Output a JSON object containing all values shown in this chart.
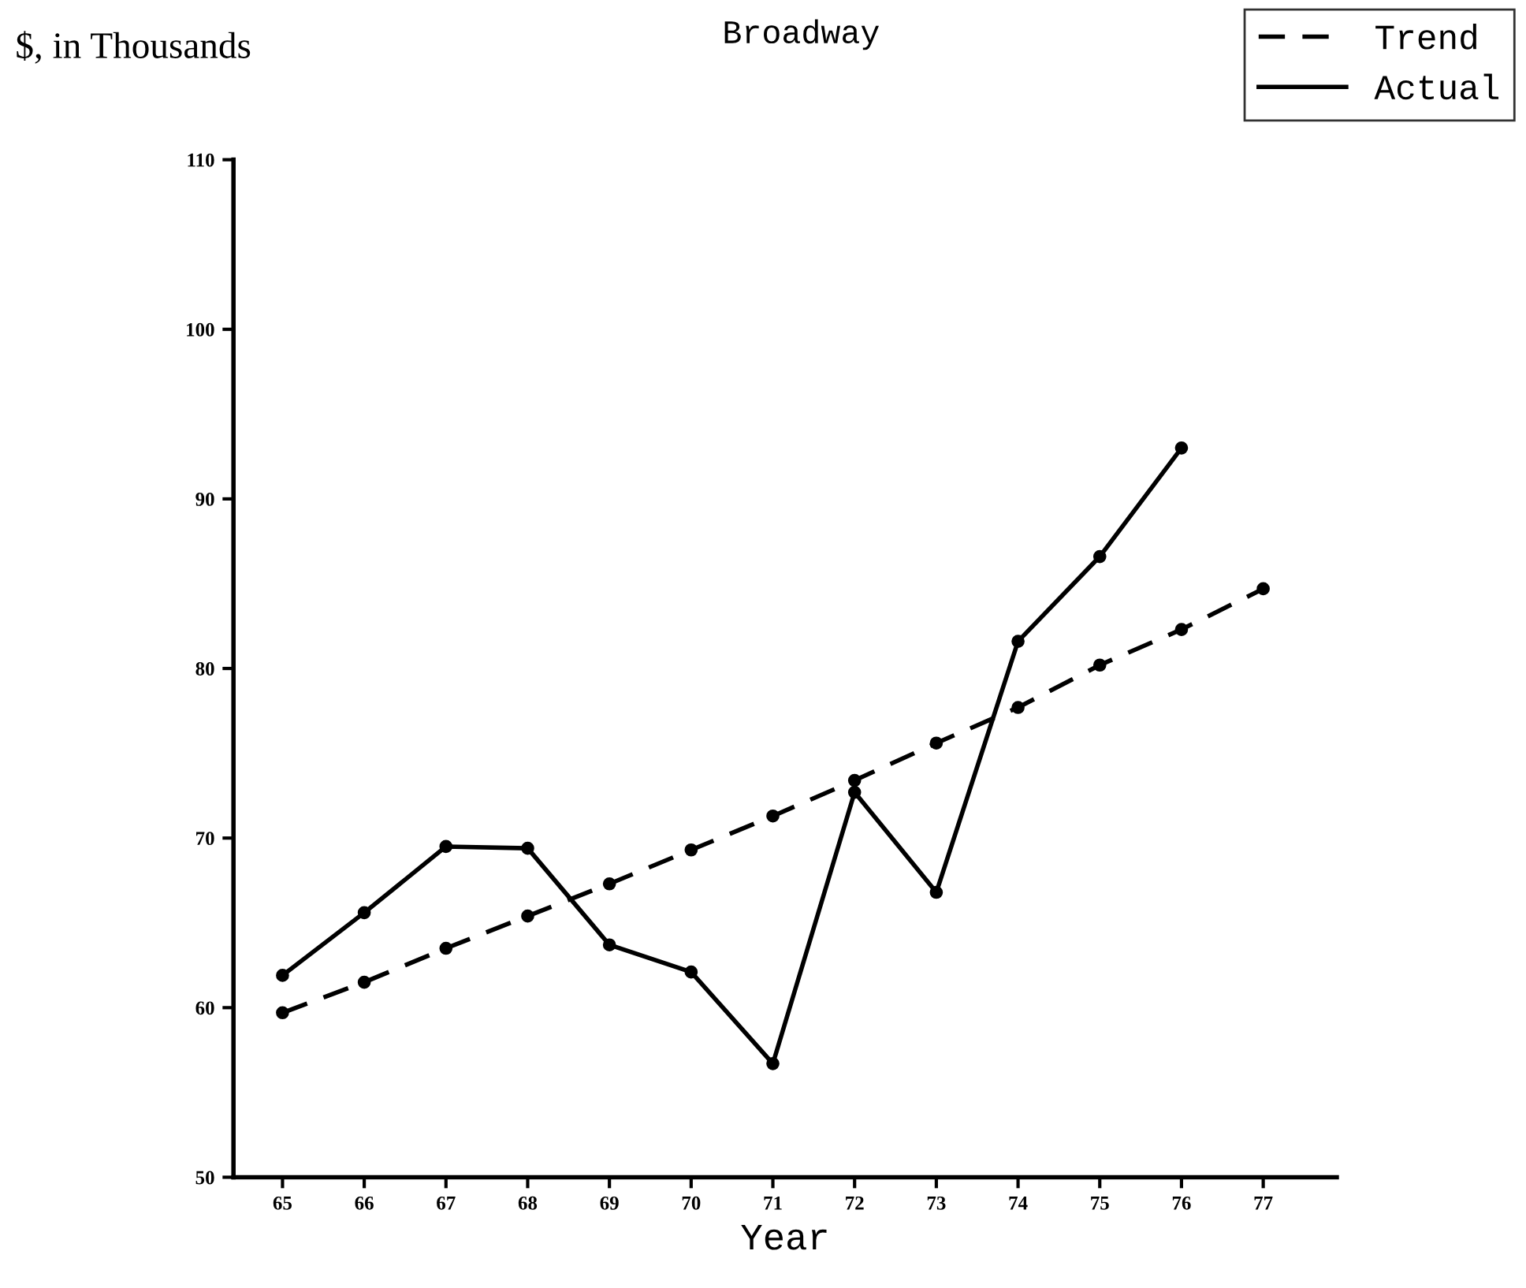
{
  "chart_data": {
    "type": "line",
    "title": "Broadway",
    "ylabel": "$, in Thousands",
    "xlabel": "Year",
    "xlim": [
      64.4,
      77.9
    ],
    "xticks": [
      65,
      66,
      67,
      68,
      69,
      70,
      71,
      72,
      73,
      74,
      75,
      76,
      77
    ],
    "ylim": [
      50,
      110
    ],
    "yticks": [
      50,
      60,
      70,
      80,
      90,
      100,
      110
    ],
    "grid": false,
    "legend": "top right",
    "marker": "circle",
    "series": [
      {
        "name": "Trend",
        "color": "#000000",
        "line_style": "dashed",
        "x": [
          65,
          66,
          67,
          68,
          69,
          70,
          71,
          72,
          73,
          74,
          75,
          76,
          77
        ],
        "values": [
          59.7,
          61.5,
          63.5,
          65.4,
          67.3,
          69.3,
          71.3,
          73.4,
          75.6,
          77.7,
          80.2,
          82.3,
          84.7
        ]
      },
      {
        "name": "Actual",
        "color": "#000000",
        "line_style": "solid",
        "x": [
          65,
          66,
          67,
          68,
          69,
          70,
          71,
          72,
          73,
          74,
          75,
          76
        ],
        "values": [
          61.9,
          65.6,
          69.5,
          69.4,
          63.7,
          62.1,
          56.7,
          72.7,
          66.8,
          81.6,
          86.6,
          93.0
        ]
      }
    ]
  }
}
